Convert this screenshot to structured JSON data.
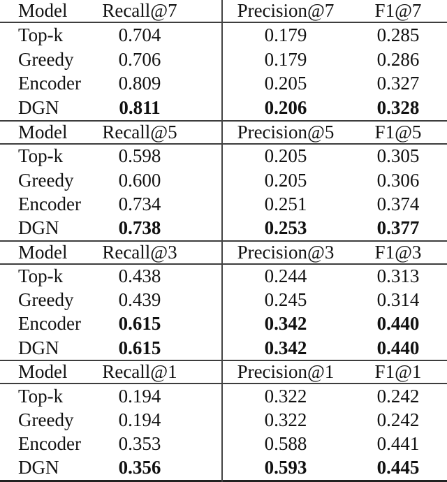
{
  "table": {
    "sections": [
      {
        "headers": [
          "Model",
          "Recall@7",
          "Precision@7",
          "F1@7"
        ],
        "rows": [
          {
            "model": "Top-k",
            "values": [
              "0.704",
              "0.179",
              "0.285"
            ],
            "bold": false
          },
          {
            "model": "Greedy",
            "values": [
              "0.706",
              "0.179",
              "0.286"
            ],
            "bold": false
          },
          {
            "model": "Encoder",
            "values": [
              "0.809",
              "0.205",
              "0.327"
            ],
            "bold": false
          },
          {
            "model": "DGN",
            "values": [
              "0.811",
              "0.206",
              "0.328"
            ],
            "bold": true
          }
        ]
      },
      {
        "headers": [
          "Model",
          "Recall@5",
          "Precision@5",
          "F1@5"
        ],
        "rows": [
          {
            "model": "Top-k",
            "values": [
              "0.598",
              "0.205",
              "0.305"
            ],
            "bold": false
          },
          {
            "model": "Greedy",
            "values": [
              "0.600",
              "0.205",
              "0.306"
            ],
            "bold": false
          },
          {
            "model": "Encoder",
            "values": [
              "0.734",
              "0.251",
              "0.374"
            ],
            "bold": false
          },
          {
            "model": "DGN",
            "values": [
              "0.738",
              "0.253",
              "0.377"
            ],
            "bold": true
          }
        ]
      },
      {
        "headers": [
          "Model",
          "Recall@3",
          "Precision@3",
          "F1@3"
        ],
        "rows": [
          {
            "model": "Top-k",
            "values": [
              "0.438",
              "0.244",
              "0.313"
            ],
            "bold": false
          },
          {
            "model": "Greedy",
            "values": [
              "0.439",
              "0.245",
              "0.314"
            ],
            "bold": false
          },
          {
            "model": "Encoder",
            "values": [
              "0.615",
              "0.342",
              "0.440"
            ],
            "bold": true
          },
          {
            "model": "DGN",
            "values": [
              "0.615",
              "0.342",
              "0.440"
            ],
            "bold": true
          }
        ]
      },
      {
        "headers": [
          "Model",
          "Recall@1",
          "Precision@1",
          "F1@1"
        ],
        "rows": [
          {
            "model": "Top-k",
            "values": [
              "0.194",
              "0.322",
              "0.242"
            ],
            "bold": false
          },
          {
            "model": "Greedy",
            "values": [
              "0.194",
              "0.322",
              "0.242"
            ],
            "bold": false
          },
          {
            "model": "Encoder",
            "values": [
              "0.353",
              "0.588",
              "0.441"
            ],
            "bold": false
          },
          {
            "model": "DGN",
            "values": [
              "0.356",
              "0.593",
              "0.445"
            ],
            "bold": true
          }
        ]
      }
    ]
  },
  "colors": {
    "text": "#111111",
    "rule": "#3d3d3d",
    "background": "#ffffff"
  }
}
